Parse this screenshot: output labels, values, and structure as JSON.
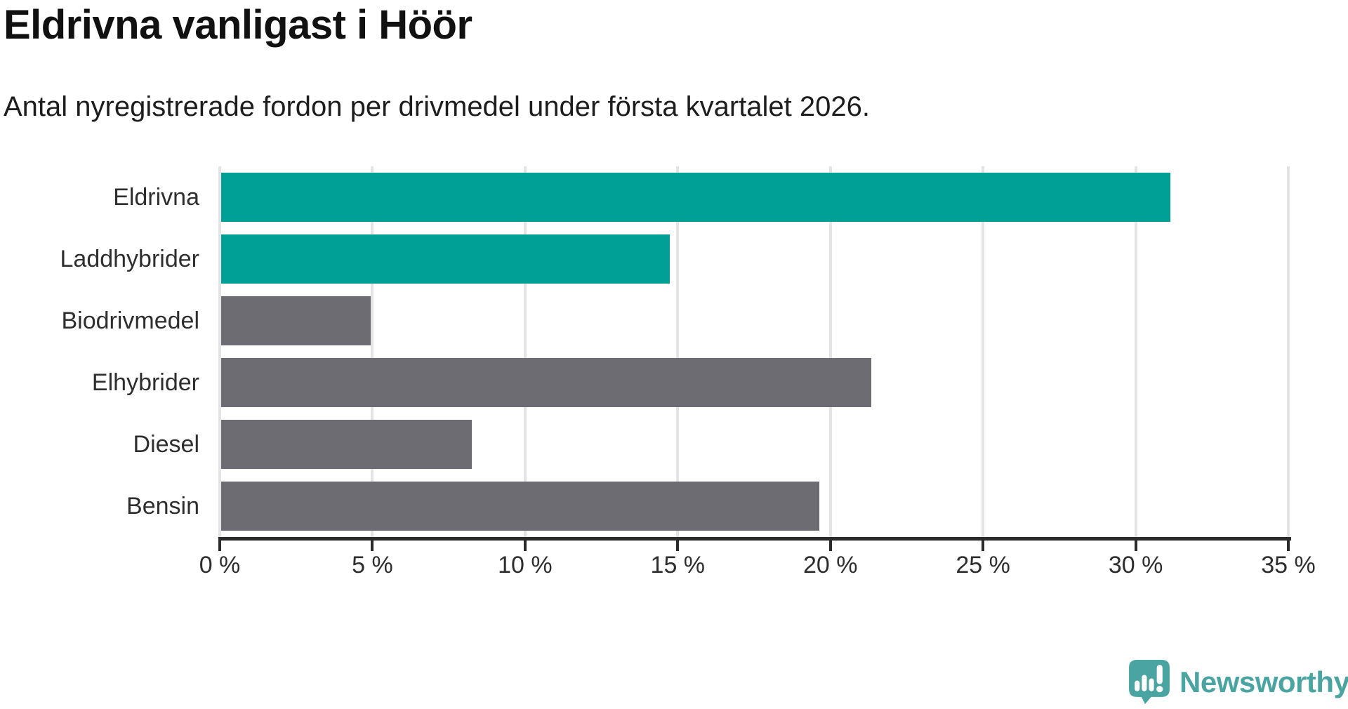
{
  "header": {
    "title": "Eldrivna vanligast i Höör",
    "subtitle": "Antal nyregistrerade fordon per drivmedel under första kvartalet 2026."
  },
  "chart_data": {
    "type": "bar",
    "orientation": "horizontal",
    "title": "Eldrivna vanligast i Höör",
    "subtitle": "Antal nyregistrerade fordon per drivmedel under första kvartalet 2026.",
    "categories": [
      "Eldrivna",
      "Laddhybrider",
      "Biodrivmedel",
      "Elhybrider",
      "Diesel",
      "Bensin"
    ],
    "values": [
      31.1,
      14.7,
      4.9,
      21.3,
      8.2,
      19.6
    ],
    "unit": "%",
    "bar_colors": [
      "#00a096",
      "#00a096",
      "#6c6c72",
      "#6c6c72",
      "#6c6c72",
      "#6c6c72"
    ],
    "colors": {
      "highlight": "#00a096",
      "default": "#6c6c72",
      "grid": "#e4e4e4",
      "axis": "#2b2b2b",
      "label_text": "#2e2e2e"
    },
    "xlim": [
      0,
      35
    ],
    "x_ticks": [
      0,
      5,
      10,
      15,
      20,
      25,
      30,
      35
    ],
    "x_tick_labels": [
      "0 %",
      "5 %",
      "10 %",
      "15 %",
      "20 %",
      "25 %",
      "30 %",
      "35 %"
    ],
    "grid": true,
    "legend": false,
    "xlabel": "",
    "ylabel": ""
  },
  "branding": {
    "logo_text": "Newsworthy",
    "logo_color": "#4aa4a1",
    "logo_icon": "newsworthy-speech-bubble-chart-icon"
  }
}
